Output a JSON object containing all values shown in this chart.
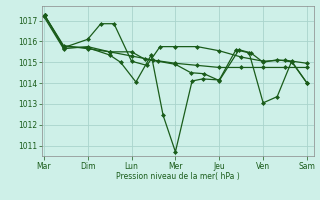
{
  "bg_color": "#cef0e8",
  "grid_color": "#aad4cc",
  "line_color": "#1a5c1a",
  "marker_color": "#1a5c1a",
  "xlabel": "Pression niveau de la mer( hPa )",
  "ylim": [
    1010.5,
    1017.7
  ],
  "yticks": [
    1011,
    1012,
    1013,
    1014,
    1015,
    1016,
    1017
  ],
  "day_labels": [
    "Mar",
    "Dim",
    "Lun",
    "Mer",
    "Jeu",
    "Ven",
    "Sam"
  ],
  "xlim": [
    -0.05,
    6.15
  ],
  "line1_x": [
    0.0,
    0.45,
    1.0,
    1.5,
    2.0,
    2.5,
    3.0,
    3.5,
    4.0,
    4.5,
    5.0,
    5.5,
    6.0
  ],
  "line1_y": [
    1017.2,
    1015.65,
    1015.75,
    1015.5,
    1015.3,
    1015.1,
    1014.95,
    1014.85,
    1014.75,
    1014.75,
    1014.75,
    1014.75,
    1014.75
  ],
  "line2_x": [
    0.02,
    0.45,
    1.0,
    1.3,
    1.6,
    2.0,
    2.35,
    2.65,
    3.0,
    3.5,
    4.0,
    4.5,
    5.0,
    5.5,
    6.0
  ],
  "line2_y": [
    1017.25,
    1015.7,
    1016.1,
    1016.85,
    1016.85,
    1015.05,
    1014.85,
    1015.75,
    1015.75,
    1015.75,
    1015.55,
    1015.25,
    1015.05,
    1015.1,
    1014.95
  ],
  "line3_x": [
    0.02,
    0.45,
    1.0,
    1.5,
    1.75,
    2.1,
    2.45,
    2.72,
    3.0,
    3.38,
    3.62,
    4.0,
    4.38,
    4.68,
    5.0,
    5.32,
    5.65,
    6.0
  ],
  "line3_y": [
    1017.25,
    1015.75,
    1015.7,
    1015.35,
    1015.0,
    1014.05,
    1015.35,
    1012.45,
    1010.7,
    1014.1,
    1014.2,
    1014.15,
    1015.6,
    1015.45,
    1013.05,
    1013.35,
    1015.05,
    1014.0
  ],
  "line4_x": [
    0.02,
    0.45,
    1.0,
    1.5,
    2.0,
    2.3,
    2.6,
    3.0,
    3.35,
    3.65,
    4.0,
    4.45,
    4.72,
    5.0,
    5.32,
    5.65,
    6.0
  ],
  "line4_y": [
    1017.25,
    1015.8,
    1015.65,
    1015.5,
    1015.5,
    1015.15,
    1015.05,
    1014.9,
    1014.5,
    1014.45,
    1014.12,
    1015.6,
    1015.45,
    1015.0,
    1015.12,
    1015.02,
    1014.0
  ]
}
